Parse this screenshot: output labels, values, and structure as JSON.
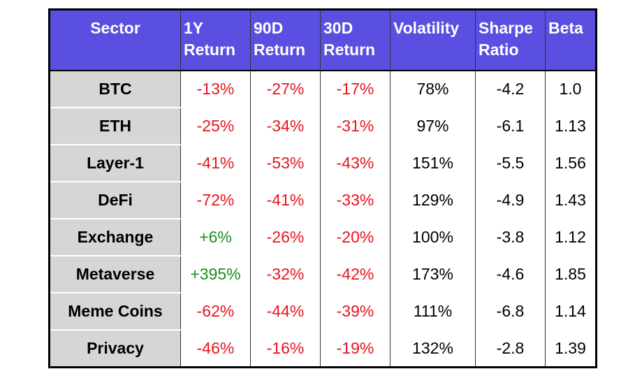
{
  "table": {
    "header": [
      "Sector",
      "1Y Return",
      "90D Return",
      "30D Return",
      "Volatility",
      "Sharpe Ratio",
      "Beta"
    ],
    "rows": [
      [
        "BTC",
        "-13%",
        "-27%",
        "-17%",
        "78%",
        "-4.2",
        "1.0"
      ],
      [
        "ETH",
        "-25%",
        "-34%",
        "-31%",
        "97%",
        "-6.1",
        "1.13"
      ],
      [
        "Layer-1",
        "-41%",
        "-53%",
        "-43%",
        "151%",
        "-5.5",
        "1.56"
      ],
      [
        "DeFi",
        "-72%",
        "-41%",
        "-33%",
        "129%",
        "-4.9",
        "1.43"
      ],
      [
        "Exchange",
        "+6%",
        "-26%",
        "-20%",
        "100%",
        "-3.8",
        "1.12"
      ],
      [
        "Metaverse",
        "+395%",
        "-32%",
        "-42%",
        "173%",
        "-4.6",
        "1.85"
      ],
      [
        "Meme Coins",
        "-62%",
        "-44%",
        "-39%",
        "111%",
        "-6.8",
        "1.14"
      ],
      [
        "Privacy",
        "-46%",
        "-16%",
        "-19%",
        "132%",
        "-2.8",
        "1.39"
      ]
    ]
  }
}
